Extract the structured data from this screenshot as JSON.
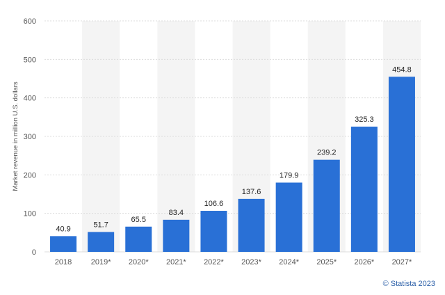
{
  "chart_data": {
    "type": "bar",
    "categories": [
      "2018",
      "2019*",
      "2020*",
      "2021*",
      "2022*",
      "2023*",
      "2024*",
      "2025*",
      "2026*",
      "2027*"
    ],
    "values": [
      40.9,
      51.7,
      65.5,
      83.4,
      106.6,
      137.6,
      179.9,
      239.2,
      325.3,
      454.8
    ],
    "value_labels": [
      "40.9",
      "51.7",
      "65.5",
      "83.4",
      "106.6",
      "137.6",
      "179.9",
      "239.2",
      "325.3",
      "454.8"
    ],
    "ylabel": "Market revenue in million U.S. dollars",
    "xlabel": "",
    "ylim": [
      0,
      600
    ],
    "yticks": [
      0,
      100,
      200,
      300,
      400,
      500,
      600
    ],
    "grid": true,
    "colors": {
      "bar": "#2970d6",
      "band": "#f4f4f4",
      "grid": "#dcdcdc"
    }
  },
  "footer": {
    "copyright": "© Statista 2023"
  }
}
